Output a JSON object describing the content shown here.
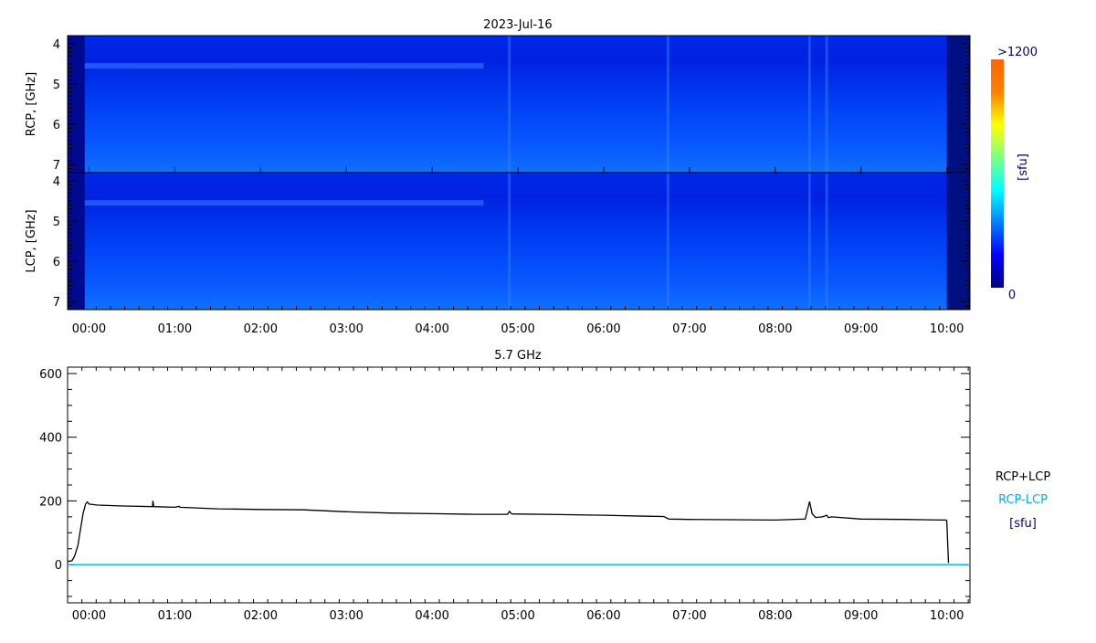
{
  "chart_data": [
    {
      "type": "heatmap",
      "title": "2023-Jul-16",
      "panels": [
        {
          "name": "RCP",
          "ylabel": "RCP, [GHz]"
        },
        {
          "name": "LCP",
          "ylabel": "LCP, [GHz]"
        }
      ],
      "ylim": [
        7.2,
        3.8
      ],
      "yticks": [
        "4",
        "5",
        "6",
        "7"
      ],
      "xlim_hours": [
        -0.25,
        10.27
      ],
      "xticks": [
        "00:00",
        "01:00",
        "02:00",
        "03:00",
        "04:00",
        "05:00",
        "06:00",
        "07:00",
        "08:00",
        "09:00",
        "10:00"
      ],
      "features": {
        "bright_band_ghz": 4.55,
        "low_signal_until_hour": -0.05,
        "low_signal_after_hour": 10.0,
        "bright_stripes_hours": [
          4.9,
          6.75,
          8.4,
          8.6
        ]
      },
      "colorbar": {
        "min_label": "0",
        "max_label": ">1200",
        "unit": "[sfu]",
        "colors": [
          "#000080",
          "#0000ff",
          "#0080ff",
          "#00ffff",
          "#80ff80",
          "#ffff00",
          "#ff8000",
          "#ff6600"
        ]
      }
    },
    {
      "type": "line",
      "title": "5.7 GHz",
      "ylim": [
        -120,
        620
      ],
      "yticks": [
        "0",
        "200",
        "400",
        "600"
      ],
      "xticks": [
        "00:00",
        "01:00",
        "02:00",
        "03:00",
        "04:00",
        "05:00",
        "06:00",
        "07:00",
        "08:00",
        "09:00",
        "10:00"
      ],
      "xlim_hours": [
        -0.25,
        10.27
      ],
      "unit": "[sfu]",
      "series": [
        {
          "name": "RCP+LCP",
          "color": "#000000",
          "x": [
            -0.25,
            -0.2,
            -0.17,
            -0.13,
            -0.1,
            -0.07,
            -0.04,
            -0.02,
            0.0,
            0.1,
            0.4,
            0.74,
            0.745,
            0.755,
            1.0,
            1.05,
            1.06,
            1.5,
            2.0,
            2.5,
            3.0,
            3.5,
            4.0,
            4.5,
            4.88,
            4.9,
            4.93,
            5.5,
            6.0,
            6.5,
            6.7,
            6.76,
            7.0,
            7.5,
            8.0,
            8.35,
            8.4,
            8.43,
            8.47,
            8.55,
            8.6,
            8.62,
            8.66,
            9.0,
            9.5,
            9.99,
            10.0,
            10.02
          ],
          "y": [
            10,
            12,
            25,
            60,
            110,
            160,
            190,
            197,
            190,
            187,
            184,
            182,
            200,
            182,
            180,
            183,
            180,
            175,
            173,
            172,
            166,
            162,
            160,
            158,
            158,
            167,
            159,
            157,
            155,
            152,
            151,
            143,
            142,
            141,
            140,
            143,
            198,
            160,
            148,
            150,
            155,
            148,
            150,
            143,
            142,
            140,
            138,
            5
          ]
        },
        {
          "name": "RCP-LCP",
          "color": "#00b0f0",
          "x": [
            -0.25,
            10.27
          ],
          "y": [
            0,
            0
          ]
        }
      ],
      "legend_unit": "[sfu]"
    }
  ]
}
